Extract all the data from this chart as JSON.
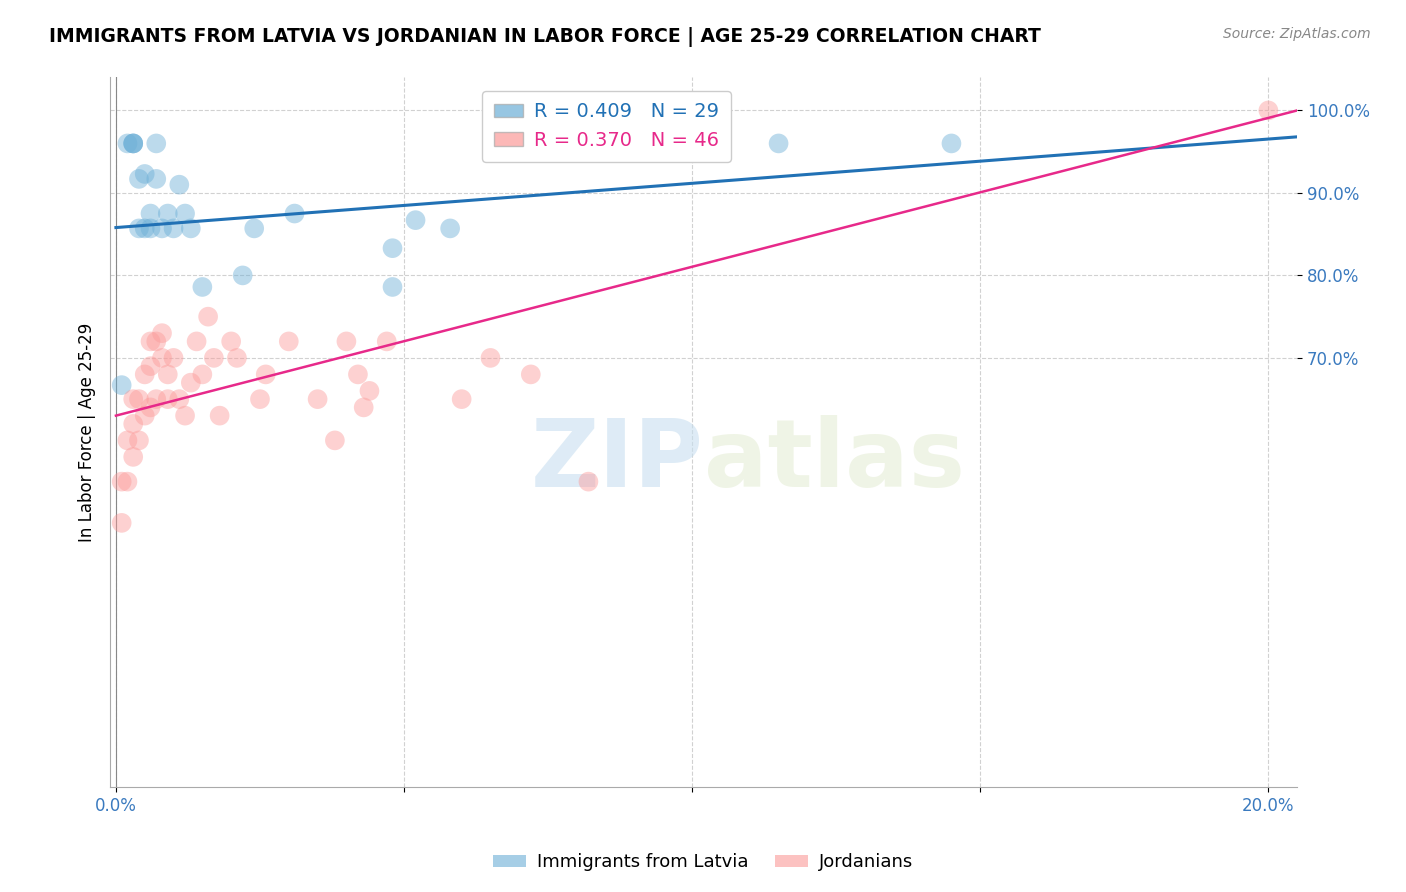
{
  "title": "IMMIGRANTS FROM LATVIA VS JORDANIAN IN LABOR FORCE | AGE 25-29 CORRELATION CHART",
  "source": "Source: ZipAtlas.com",
  "ylabel": "In Labor Force | Age 25-29",
  "xlim": [
    -0.001,
    0.205
  ],
  "ylim": [
    0.18,
    1.04
  ],
  "latvia_r": 0.409,
  "latvia_n": 29,
  "jordan_r": 0.37,
  "jordan_n": 46,
  "latvia_color": "#6baed6",
  "jordan_color": "#fb9a99",
  "latvia_line_color": "#2171b5",
  "jordan_line_color": "#e7298a",
  "legend_labels": [
    "Immigrants from Latvia",
    "Jordanians"
  ],
  "watermark_zip": "ZIP",
  "watermark_atlas": "atlas",
  "latvia_x": [
    0.001,
    0.002,
    0.003,
    0.003,
    0.003,
    0.004,
    0.004,
    0.005,
    0.005,
    0.006,
    0.006,
    0.007,
    0.007,
    0.008,
    0.009,
    0.01,
    0.011,
    0.012,
    0.013,
    0.015,
    0.022,
    0.024,
    0.031,
    0.048,
    0.048,
    0.052,
    0.058,
    0.115,
    0.145
  ],
  "latvia_y": [
    0.667,
    0.96,
    0.96,
    0.96,
    0.96,
    0.857,
    0.917,
    0.923,
    0.857,
    0.875,
    0.857,
    0.96,
    0.917,
    0.857,
    0.875,
    0.857,
    0.91,
    0.875,
    0.857,
    0.786,
    0.8,
    0.857,
    0.875,
    0.833,
    0.786,
    0.867,
    0.857,
    0.96,
    0.96
  ],
  "jordan_x": [
    0.001,
    0.001,
    0.002,
    0.002,
    0.003,
    0.003,
    0.003,
    0.004,
    0.004,
    0.005,
    0.005,
    0.006,
    0.006,
    0.006,
    0.007,
    0.007,
    0.008,
    0.008,
    0.009,
    0.009,
    0.01,
    0.011,
    0.012,
    0.013,
    0.014,
    0.015,
    0.016,
    0.017,
    0.018,
    0.02,
    0.021,
    0.025,
    0.026,
    0.03,
    0.035,
    0.038,
    0.04,
    0.042,
    0.043,
    0.044,
    0.047,
    0.06,
    0.065,
    0.072,
    0.082,
    0.2
  ],
  "jordan_y": [
    0.5,
    0.55,
    0.6,
    0.55,
    0.65,
    0.62,
    0.58,
    0.65,
    0.6,
    0.68,
    0.63,
    0.72,
    0.69,
    0.64,
    0.72,
    0.65,
    0.73,
    0.7,
    0.68,
    0.65,
    0.7,
    0.65,
    0.63,
    0.67,
    0.72,
    0.68,
    0.75,
    0.7,
    0.63,
    0.72,
    0.7,
    0.65,
    0.68,
    0.72,
    0.65,
    0.6,
    0.72,
    0.68,
    0.64,
    0.66,
    0.72,
    0.65,
    0.7,
    0.68,
    0.55,
    1.0
  ],
  "line_latvia_x0": 0.0,
  "line_latvia_y0": 0.858,
  "line_latvia_x1": 0.205,
  "line_latvia_y1": 0.968,
  "line_jordan_x0": 0.0,
  "line_jordan_y0": 0.63,
  "line_jordan_x1": 0.205,
  "line_jordan_y1": 1.0
}
